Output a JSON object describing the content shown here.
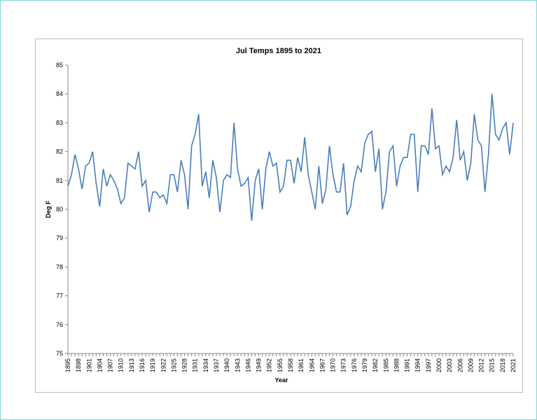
{
  "chart_data": {
    "type": "line",
    "title": "Jul Temps 1895 to 2021",
    "x_label": "Year",
    "y_label": "Deg F",
    "x": [
      1895,
      1896,
      1897,
      1898,
      1899,
      1900,
      1901,
      1902,
      1903,
      1904,
      1905,
      1906,
      1907,
      1908,
      1909,
      1910,
      1911,
      1912,
      1913,
      1914,
      1915,
      1916,
      1917,
      1918,
      1919,
      1920,
      1921,
      1922,
      1923,
      1924,
      1925,
      1926,
      1927,
      1928,
      1929,
      1930,
      1931,
      1932,
      1933,
      1934,
      1935,
      1936,
      1937,
      1938,
      1939,
      1940,
      1941,
      1942,
      1943,
      1944,
      1945,
      1946,
      1947,
      1948,
      1949,
      1950,
      1951,
      1952,
      1953,
      1954,
      1955,
      1956,
      1957,
      1958,
      1959,
      1960,
      1961,
      1962,
      1963,
      1964,
      1965,
      1966,
      1967,
      1968,
      1969,
      1970,
      1971,
      1972,
      1973,
      1974,
      1975,
      1976,
      1977,
      1978,
      1979,
      1980,
      1981,
      1982,
      1983,
      1984,
      1985,
      1986,
      1987,
      1988,
      1989,
      1990,
      1991,
      1992,
      1993,
      1994,
      1995,
      1996,
      1997,
      1998,
      1999,
      2000,
      2001,
      2002,
      2003,
      2004,
      2005,
      2006,
      2007,
      2008,
      2009,
      2010,
      2011,
      2012,
      2013,
      2014,
      2015,
      2016,
      2017,
      2018,
      2019,
      2020,
      2021
    ],
    "series": [
      {
        "name": "Deg F",
        "color": "#4a7ebb",
        "values": [
          80.8,
          81.2,
          81.9,
          81.4,
          80.7,
          81.5,
          81.6,
          82.0,
          80.9,
          80.1,
          81.4,
          80.8,
          81.2,
          81.0,
          80.7,
          80.2,
          80.4,
          81.6,
          81.5,
          81.4,
          82.0,
          80.8,
          81.0,
          79.9,
          80.6,
          80.6,
          80.4,
          80.5,
          80.2,
          81.2,
          81.2,
          80.6,
          81.7,
          81.2,
          80.0,
          82.2,
          82.6,
          83.3,
          80.8,
          81.3,
          80.4,
          81.7,
          81.1,
          79.9,
          81.0,
          81.2,
          81.1,
          83.0,
          81.4,
          80.8,
          80.9,
          81.1,
          79.6,
          81.0,
          81.4,
          80.0,
          81.4,
          82.0,
          81.5,
          81.6,
          80.6,
          80.8,
          81.7,
          81.7,
          80.9,
          81.8,
          81.3,
          82.5,
          81.2,
          80.6,
          80.0,
          81.5,
          80.2,
          80.7,
          82.2,
          81.2,
          80.6,
          80.6,
          81.6,
          79.8,
          80.1,
          81.0,
          81.5,
          81.3,
          82.3,
          82.6,
          82.7,
          81.3,
          82.1,
          80.0,
          80.6,
          82.0,
          82.2,
          80.8,
          81.5,
          81.8,
          81.8,
          82.6,
          82.6,
          80.6,
          82.2,
          82.2,
          81.9,
          83.5,
          82.1,
          82.2,
          81.2,
          81.5,
          81.3,
          81.8,
          83.1,
          81.7,
          82.0,
          81.0,
          81.6,
          83.3,
          82.4,
          82.2,
          80.6,
          81.9,
          84.0,
          82.6,
          82.4,
          82.8,
          83.0,
          81.9,
          83.0
        ]
      }
    ],
    "xlim": [
      1895,
      2021
    ],
    "xticks": [
      1895,
      1898,
      1901,
      1904,
      1907,
      1910,
      1913,
      1916,
      1919,
      1922,
      1925,
      1928,
      1931,
      1934,
      1937,
      1940,
      1943,
      1946,
      1949,
      1952,
      1955,
      1958,
      1961,
      1964,
      1967,
      1970,
      1973,
      1976,
      1979,
      1982,
      1985,
      1988,
      1991,
      1994,
      1997,
      2000,
      2003,
      2006,
      2009,
      2012,
      2015,
      2018,
      2021
    ],
    "ylim": [
      75,
      85
    ],
    "yticks": [
      75,
      76,
      77,
      78,
      79,
      80,
      81,
      82,
      83,
      84,
      85
    ],
    "grid": false
  }
}
